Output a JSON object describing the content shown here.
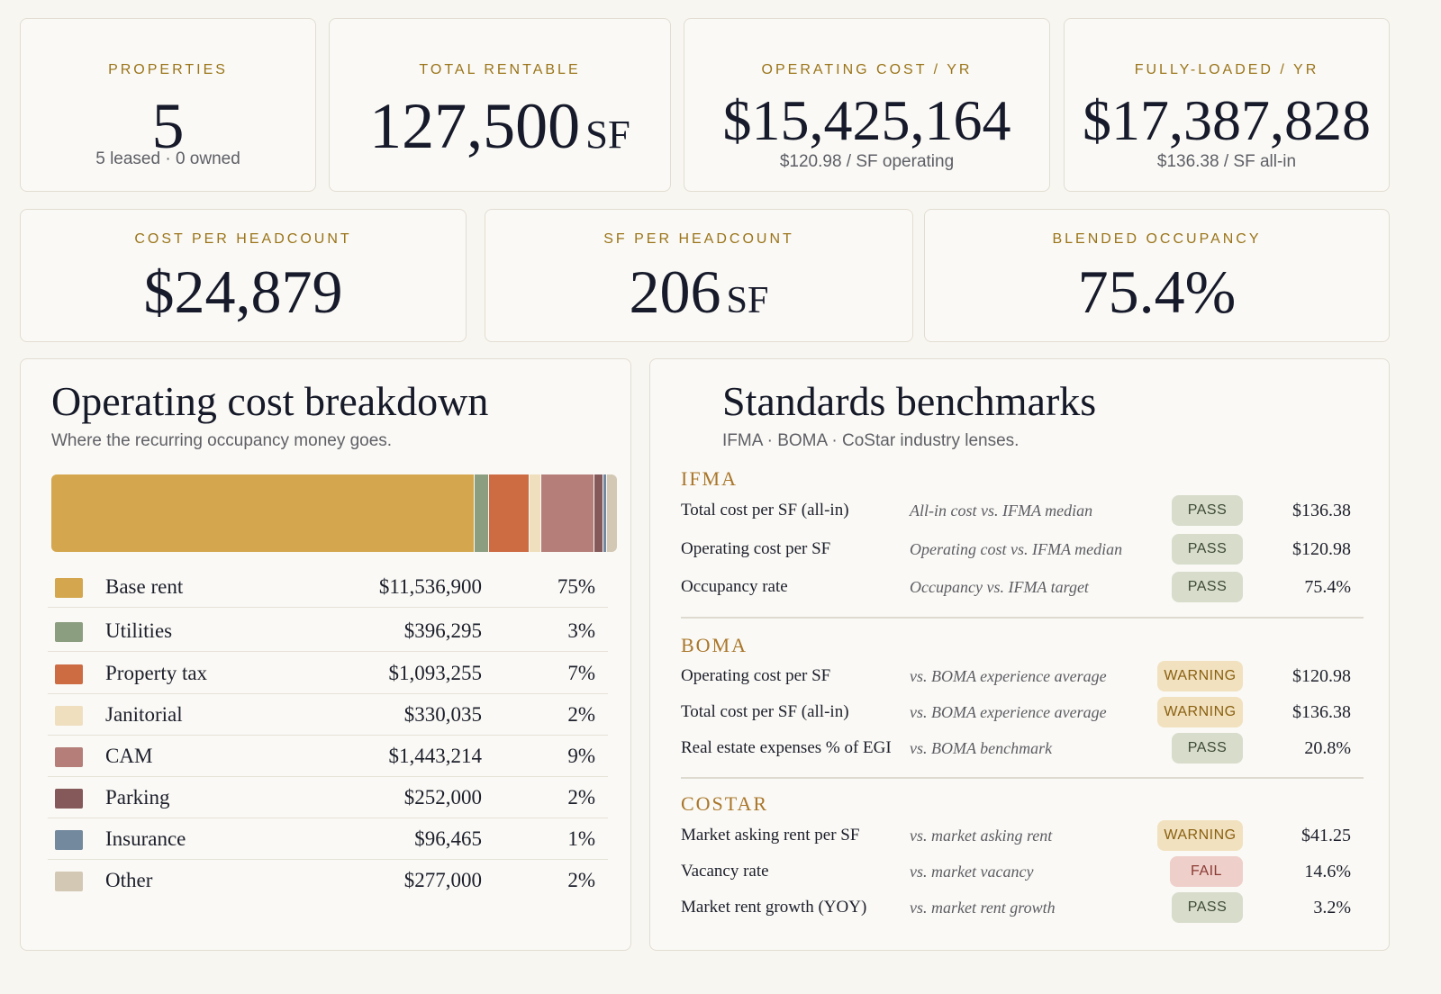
{
  "kpis_top": [
    {
      "label": "PROPERTIES",
      "value": "5",
      "unit": "",
      "sub": "5 leased · 0 owned"
    },
    {
      "label": "TOTAL RENTABLE",
      "value": "127,500",
      "unit": "SF",
      "sub": ""
    },
    {
      "label": "OPERATING COST / YR",
      "value": "$15,425,164",
      "unit": "",
      "sub": "$120.98 / SF operating"
    },
    {
      "label": "FULLY-LOADED / YR",
      "value": "$17,387,828",
      "unit": "",
      "sub": "$136.38 / SF all-in"
    }
  ],
  "kpis_mid": [
    {
      "label": "COST PER HEADCOUNT",
      "value": "$24,879",
      "unit": ""
    },
    {
      "label": "SF PER HEADCOUNT",
      "value": "206",
      "unit": "SF"
    },
    {
      "label": "BLENDED OCCUPANCY",
      "value": "75.4%",
      "unit": ""
    }
  ],
  "breakdown": {
    "title": "Operating cost breakdown",
    "subtitle": "Where the recurring occupancy money goes.",
    "items": [
      {
        "name": "Base rent",
        "amount": "$11,536,900",
        "pct": "75%",
        "share": 0.748,
        "color": "#d4a74f"
      },
      {
        "name": "Utilities",
        "amount": "$396,295",
        "pct": "3%",
        "share": 0.026,
        "color": "#8c9e80"
      },
      {
        "name": "Property tax",
        "amount": "$1,093,255",
        "pct": "7%",
        "share": 0.071,
        "color": "#cd6b43"
      },
      {
        "name": "Janitorial",
        "amount": "$330,035",
        "pct": "2%",
        "share": 0.021,
        "color": "#efdfbe"
      },
      {
        "name": "CAM",
        "amount": "$1,443,214",
        "pct": "9%",
        "share": 0.094,
        "color": "#b57e78"
      },
      {
        "name": "Parking",
        "amount": "$252,000",
        "pct": "2%",
        "share": 0.016,
        "color": "#85595a"
      },
      {
        "name": "Insurance",
        "amount": "$96,465",
        "pct": "1%",
        "share": 0.006,
        "color": "#73899e"
      },
      {
        "name": "Other",
        "amount": "$277,000",
        "pct": "2%",
        "share": 0.018,
        "color": "#d3c8b4"
      }
    ]
  },
  "benchmarks": {
    "title": "Standards benchmarks",
    "subtitle": "IFMA · BOMA · CoStar industry lenses.",
    "sections": [
      {
        "title": "IFMA",
        "rows": [
          {
            "metric": "Total cost per SF (all-in)",
            "desc": "All-in cost vs. IFMA median",
            "status": "PASS",
            "value": "$136.38"
          },
          {
            "metric": "Operating cost per SF",
            "desc": "Operating cost vs. IFMA median",
            "status": "PASS",
            "value": "$120.98"
          },
          {
            "metric": "Occupancy rate",
            "desc": "Occupancy vs. IFMA target",
            "status": "PASS",
            "value": "75.4%"
          }
        ]
      },
      {
        "title": "BOMA",
        "rows": [
          {
            "metric": "Operating cost per SF",
            "desc": "vs. BOMA experience average",
            "status": "WARNING",
            "value": "$120.98"
          },
          {
            "metric": "Total cost per SF (all-in)",
            "desc": "vs. BOMA experience average",
            "status": "WARNING",
            "value": "$136.38"
          },
          {
            "metric": "Real estate expenses % of EGI",
            "desc": "vs. BOMA benchmark",
            "status": "PASS",
            "value": "20.8%"
          }
        ]
      },
      {
        "title": "COSTAR",
        "rows": [
          {
            "metric": "Market asking rent per SF",
            "desc": "vs. market asking rent",
            "status": "WARNING",
            "value": "$41.25"
          },
          {
            "metric": "Vacancy rate",
            "desc": "vs. market vacancy",
            "status": "FAIL",
            "value": "14.6%"
          },
          {
            "metric": "Market rent growth (YOY)",
            "desc": "vs. market rent growth",
            "status": "PASS",
            "value": "3.2%"
          }
        ]
      }
    ]
  }
}
